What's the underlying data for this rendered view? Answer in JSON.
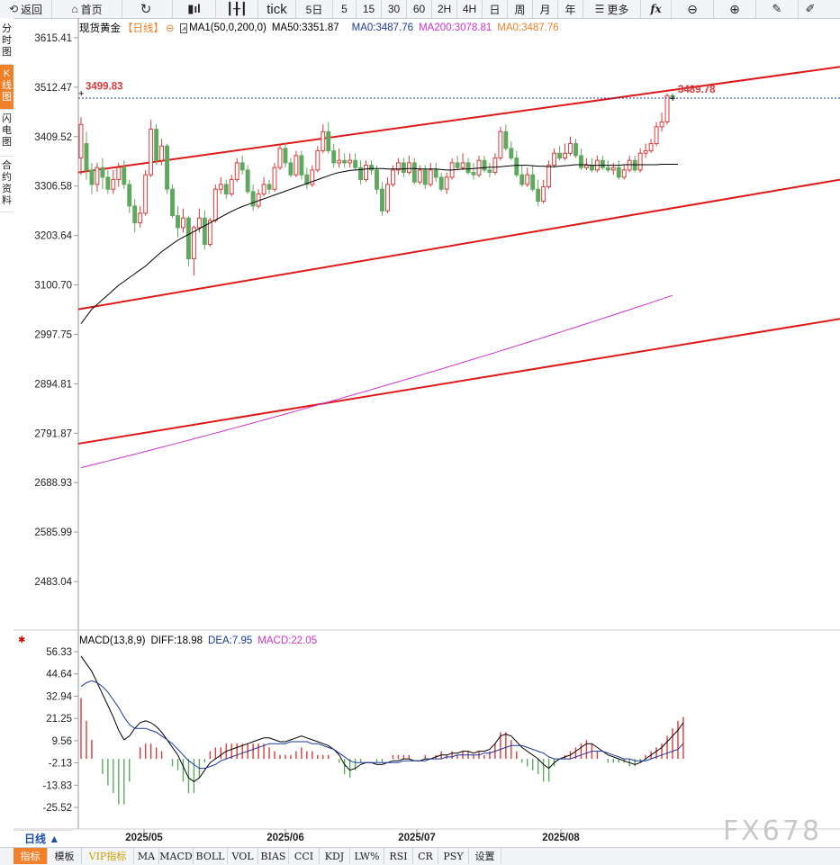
{
  "toolbar": {
    "back": "返回",
    "home": "首页",
    "tick": "tick",
    "d5": "5日",
    "m5": "5",
    "m15": "15",
    "m30": "30",
    "m60": "60",
    "h2": "2H",
    "h4": "4H",
    "day": "日",
    "week": "周",
    "month": "月",
    "year": "年",
    "more": "更多",
    "fx": "fx"
  },
  "sidebar": [
    "分时图",
    "K线图",
    "闪电图",
    "合约资料"
  ],
  "legend": {
    "name": "现货黄金",
    "period": "【日线】",
    "ma1": "MA1(50,0,200,0)",
    "ma50": "MA50:3351.87",
    "ma0a": "MA0:3487.76",
    "ma200": "MA200:3078.81",
    "ma0b": "MA0:3487.76"
  },
  "macd_legend": {
    "name": "MACD(13,8,9)",
    "diff": "DIFF:18.98",
    "dea": "DEA:7.95",
    "macd": "MACD:22.05"
  },
  "price_axis": [
    "3615.41",
    "3512.47",
    "3409.52",
    "3306.58",
    "3203.64",
    "3100.70",
    "2997.75",
    "2894.81",
    "2791.87",
    "2688.93",
    "2585.99",
    "2483.04"
  ],
  "macd_axis": [
    "56.33",
    "44.64",
    "32.94",
    "21.25",
    "9.56",
    "-2.13",
    "-13.83",
    "-25.52"
  ],
  "date_axis": [
    "2025/05",
    "2025/06",
    "2025/07",
    "2025/08"
  ],
  "labels": {
    "high": "3499.83",
    "last": "3489.78"
  },
  "period_button": "日线 ▲",
  "bottom_tabs": [
    "指标",
    "模板",
    "VIP指标",
    "MA",
    "MACD",
    "BOLL",
    "VOL",
    "BIAS",
    "CCI",
    "KDJ",
    "LW%",
    "RSI",
    "CR",
    "PSY",
    "设置"
  ],
  "watermark": "FX678",
  "colors": {
    "up": "#d93a3a",
    "down": "#5fa85f",
    "ma50": "#000000",
    "ma200": "#cc33cc",
    "channel": "#e01818",
    "dea": "#1a3a9a",
    "accent": "#f0802a"
  },
  "chart_data": {
    "type": "candlestick",
    "price_range": [
      2450,
      3650
    ],
    "candles": [
      [
        3365,
        3435,
        3395,
        3450,
        3330
      ],
      [
        3395,
        3340,
        3400,
        3420,
        3320
      ],
      [
        3340,
        3310,
        3350,
        3355,
        3290
      ],
      [
        3310,
        3345,
        3310,
        3355,
        3295
      ],
      [
        3345,
        3325,
        3355,
        3365,
        3300
      ],
      [
        3325,
        3300,
        3335,
        3340,
        3290
      ],
      [
        3300,
        3320,
        3335,
        3340,
        3290
      ],
      [
        3320,
        3345,
        3350,
        3355,
        3305
      ],
      [
        3345,
        3310,
        3350,
        3360,
        3300
      ],
      [
        3310,
        3265,
        3315,
        3320,
        3250
      ],
      [
        3265,
        3230,
        3275,
        3280,
        3210
      ],
      [
        3230,
        3250,
        3260,
        3265,
        3220
      ],
      [
        3250,
        3330,
        3335,
        3340,
        3245
      ],
      [
        3330,
        3425,
        3440,
        3445,
        3325
      ],
      [
        3425,
        3360,
        3430,
        3435,
        3350
      ],
      [
        3360,
        3390,
        3400,
        3405,
        3350
      ],
      [
        3390,
        3300,
        3395,
        3395,
        3290
      ],
      [
        3300,
        3245,
        3305,
        3310,
        3240
      ],
      [
        3245,
        3220,
        3255,
        3265,
        3200
      ],
      [
        3220,
        3240,
        3250,
        3260,
        3210
      ],
      [
        3240,
        3155,
        3245,
        3245,
        3140
      ],
      [
        3155,
        3220,
        3225,
        3225,
        3120
      ],
      [
        3220,
        3240,
        3255,
        3260,
        3210
      ],
      [
        3240,
        3185,
        3255,
        3255,
        3175
      ],
      [
        3185,
        3235,
        3240,
        3240,
        3180
      ],
      [
        3235,
        3300,
        3305,
        3310,
        3230
      ],
      [
        3300,
        3310,
        3320,
        3325,
        3290
      ],
      [
        3310,
        3290,
        3315,
        3320,
        3280
      ],
      [
        3290,
        3320,
        3325,
        3330,
        3285
      ],
      [
        3320,
        3355,
        3360,
        3365,
        3315
      ],
      [
        3355,
        3340,
        3365,
        3370,
        3330
      ],
      [
        3340,
        3295,
        3345,
        3350,
        3290
      ],
      [
        3295,
        3265,
        3305,
        3310,
        3255
      ],
      [
        3265,
        3290,
        3295,
        3300,
        3260
      ],
      [
        3290,
        3310,
        3320,
        3325,
        3285
      ],
      [
        3310,
        3300,
        3320,
        3320,
        3290
      ],
      [
        3300,
        3345,
        3350,
        3355,
        3295
      ],
      [
        3345,
        3385,
        3390,
        3395,
        3340
      ],
      [
        3385,
        3355,
        3390,
        3395,
        3345
      ],
      [
        3355,
        3330,
        3360,
        3365,
        3325
      ],
      [
        3330,
        3370,
        3375,
        3380,
        3325
      ],
      [
        3370,
        3330,
        3375,
        3380,
        3320
      ],
      [
        3330,
        3310,
        3340,
        3345,
        3300
      ],
      [
        3310,
        3340,
        3345,
        3350,
        3305
      ],
      [
        3340,
        3380,
        3385,
        3390,
        3335
      ],
      [
        3380,
        3420,
        3425,
        3435,
        3375
      ],
      [
        3420,
        3380,
        3430,
        3440,
        3375
      ],
      [
        3380,
        3355,
        3385,
        3395,
        3345
      ],
      [
        3355,
        3360,
        3375,
        3385,
        3345
      ],
      [
        3360,
        3355,
        3370,
        3375,
        3345
      ],
      [
        3355,
        3360,
        3365,
        3375,
        3345
      ],
      [
        3360,
        3345,
        3370,
        3375,
        3340
      ],
      [
        3345,
        3320,
        3350,
        3360,
        3310
      ],
      [
        3320,
        3350,
        3355,
        3360,
        3315
      ],
      [
        3350,
        3340,
        3355,
        3360,
        3330
      ],
      [
        3340,
        3300,
        3345,
        3350,
        3290
      ],
      [
        3300,
        3255,
        3310,
        3315,
        3245
      ],
      [
        3255,
        3310,
        3320,
        3325,
        3250
      ],
      [
        3310,
        3340,
        3345,
        3350,
        3305
      ],
      [
        3340,
        3355,
        3360,
        3365,
        3330
      ],
      [
        3355,
        3335,
        3360,
        3365,
        3325
      ],
      [
        3335,
        3355,
        3365,
        3370,
        3330
      ],
      [
        3355,
        3315,
        3360,
        3365,
        3310
      ],
      [
        3315,
        3340,
        3345,
        3350,
        3310
      ],
      [
        3340,
        3310,
        3345,
        3350,
        3300
      ],
      [
        3310,
        3340,
        3345,
        3355,
        3305
      ],
      [
        3340,
        3325,
        3350,
        3355,
        3315
      ],
      [
        3325,
        3300,
        3330,
        3335,
        3295
      ],
      [
        3300,
        3325,
        3330,
        3335,
        3290
      ],
      [
        3325,
        3355,
        3360,
        3365,
        3320
      ],
      [
        3355,
        3345,
        3360,
        3370,
        3340
      ],
      [
        3345,
        3355,
        3365,
        3375,
        3340
      ],
      [
        3355,
        3335,
        3360,
        3365,
        3330
      ],
      [
        3335,
        3330,
        3350,
        3355,
        3320
      ],
      [
        3330,
        3360,
        3365,
        3370,
        3325
      ],
      [
        3360,
        3340,
        3365,
        3370,
        3335
      ],
      [
        3340,
        3335,
        3350,
        3355,
        3325
      ],
      [
        3335,
        3365,
        3370,
        3375,
        3330
      ],
      [
        3365,
        3420,
        3425,
        3430,
        3360
      ],
      [
        3420,
        3385,
        3425,
        3435,
        3380
      ],
      [
        3385,
        3365,
        3395,
        3400,
        3360
      ],
      [
        3365,
        3330,
        3375,
        3380,
        3325
      ],
      [
        3330,
        3310,
        3345,
        3350,
        3305
      ],
      [
        3310,
        3330,
        3335,
        3345,
        3305
      ],
      [
        3330,
        3300,
        3345,
        3350,
        3295
      ],
      [
        3300,
        3275,
        3310,
        3320,
        3265
      ],
      [
        3275,
        3305,
        3310,
        3320,
        3270
      ],
      [
        3305,
        3350,
        3355,
        3360,
        3300
      ],
      [
        3350,
        3375,
        3380,
        3385,
        3345
      ],
      [
        3375,
        3365,
        3385,
        3390,
        3360
      ],
      [
        3365,
        3375,
        3385,
        3395,
        3360
      ],
      [
        3375,
        3395,
        3400,
        3410,
        3370
      ],
      [
        3395,
        3370,
        3400,
        3405,
        3365
      ],
      [
        3370,
        3345,
        3380,
        3385,
        3340
      ],
      [
        3345,
        3350,
        3360,
        3365,
        3340
      ],
      [
        3350,
        3340,
        3360,
        3365,
        3335
      ],
      [
        3340,
        3360,
        3365,
        3370,
        3335
      ],
      [
        3360,
        3345,
        3365,
        3370,
        3340
      ],
      [
        3345,
        3340,
        3355,
        3360,
        3335
      ],
      [
        3340,
        3345,
        3350,
        3355,
        3330
      ],
      [
        3345,
        3325,
        3355,
        3360,
        3320
      ],
      [
        3325,
        3340,
        3345,
        3350,
        3320
      ],
      [
        3340,
        3360,
        3365,
        3370,
        3335
      ],
      [
        3360,
        3340,
        3365,
        3370,
        3335
      ],
      [
        3340,
        3375,
        3380,
        3385,
        3335
      ],
      [
        3375,
        3380,
        3390,
        3395,
        3365
      ],
      [
        3380,
        3395,
        3400,
        3405,
        3375
      ],
      [
        3395,
        3430,
        3435,
        3440,
        3390
      ],
      [
        3430,
        3440,
        3455,
        3460,
        3420
      ],
      [
        3440,
        3495,
        3498,
        3500,
        3435
      ],
      [
        3495,
        3490,
        3498,
        3500,
        3485
      ]
    ],
    "ma50": [
      3020,
      3035,
      3050,
      3060,
      3070,
      3080,
      3090,
      3100,
      3108,
      3116,
      3124,
      3132,
      3140,
      3150,
      3160,
      3170,
      3178,
      3186,
      3194,
      3200,
      3206,
      3212,
      3218,
      3224,
      3230,
      3236,
      3242,
      3248,
      3254,
      3259,
      3264,
      3268,
      3272,
      3276,
      3280,
      3284,
      3288,
      3292,
      3296,
      3300,
      3304,
      3308,
      3312,
      3316,
      3320,
      3324,
      3328,
      3332,
      3335,
      3337,
      3339,
      3340,
      3341,
      3342,
      3343,
      3343,
      3343,
      3342,
      3342,
      3342,
      3342,
      3343,
      3343,
      3342,
      3342,
      3342,
      3342,
      3341,
      3340,
      3340,
      3341,
      3342,
      3342,
      3343,
      3344,
      3345,
      3346,
      3346,
      3347,
      3348,
      3349,
      3350,
      3350,
      3350,
      3349,
      3348,
      3348,
      3347,
      3347,
      3348,
      3349,
      3350,
      3351,
      3351,
      3351,
      3350,
      3350,
      3350,
      3350,
      3350,
      3350,
      3351,
      3351,
      3351,
      3351,
      3351,
      3351,
      3351,
      3352,
      3352,
      3352,
      3352
    ],
    "ma200": [
      2720,
      3078.81
    ],
    "channel": [
      {
        "from": [
          3335,
          0
        ],
        "to": [
          3555,
          1
        ]
      },
      {
        "from": [
          3050,
          0
        ],
        "to": [
          3320,
          1
        ]
      },
      {
        "from": [
          2770,
          0
        ],
        "to": [
          3030,
          1
        ]
      }
    ],
    "macd": {
      "range": [
        -30,
        60
      ],
      "diff": [
        54,
        50,
        46,
        40,
        34,
        28,
        22,
        15,
        10,
        12,
        16,
        19,
        20,
        19,
        17,
        14,
        10,
        6,
        2,
        -4,
        -10,
        -12,
        -10,
        -6,
        -2,
        0,
        2,
        4,
        5,
        6,
        7,
        8,
        9,
        10,
        11,
        11,
        10,
        9,
        9,
        10,
        11,
        12,
        11,
        10,
        9,
        8,
        7,
        5,
        2,
        -3,
        -6,
        -5,
        -3,
        -2,
        -2,
        -3,
        -3,
        -2,
        -1,
        -1,
        0,
        0,
        -1,
        -1,
        0,
        0,
        1,
        2,
        2,
        3,
        3,
        4,
        4,
        3,
        4,
        4,
        5,
        8,
        12,
        13,
        12,
        9,
        6,
        4,
        2,
        0,
        -3,
        -5,
        -2,
        0,
        1,
        2,
        4,
        6,
        8,
        8,
        6,
        4,
        2,
        1,
        0,
        -1,
        -2,
        -3,
        -2,
        0,
        2,
        4,
        6,
        9,
        12,
        15,
        19
      ],
      "dea": [
        38,
        40,
        41,
        40,
        38,
        35,
        31,
        27,
        22,
        18,
        16,
        16,
        16,
        15,
        14,
        12,
        10,
        8,
        5,
        2,
        -1,
        -3,
        -5,
        -5,
        -4,
        -3,
        -1,
        0,
        1,
        2,
        3,
        4,
        5,
        6,
        7,
        8,
        8,
        8,
        8,
        9,
        9,
        9,
        9,
        8,
        8,
        7,
        6,
        5,
        3,
        1,
        -1,
        -2,
        -2,
        -2,
        -2,
        -2,
        -2,
        -2,
        -2,
        -2,
        -1,
        -1,
        -1,
        -1,
        -1,
        0,
        0,
        0,
        1,
        1,
        2,
        2,
        2,
        2,
        2,
        3,
        3,
        4,
        5,
        6,
        7,
        7,
        7,
        6,
        5,
        4,
        3,
        1,
        0,
        0,
        0,
        0,
        1,
        2,
        3,
        4,
        4,
        4,
        3,
        2,
        1,
        0,
        0,
        -1,
        -1,
        -1,
        0,
        1,
        2,
        3,
        4,
        5,
        8
      ]
    }
  }
}
